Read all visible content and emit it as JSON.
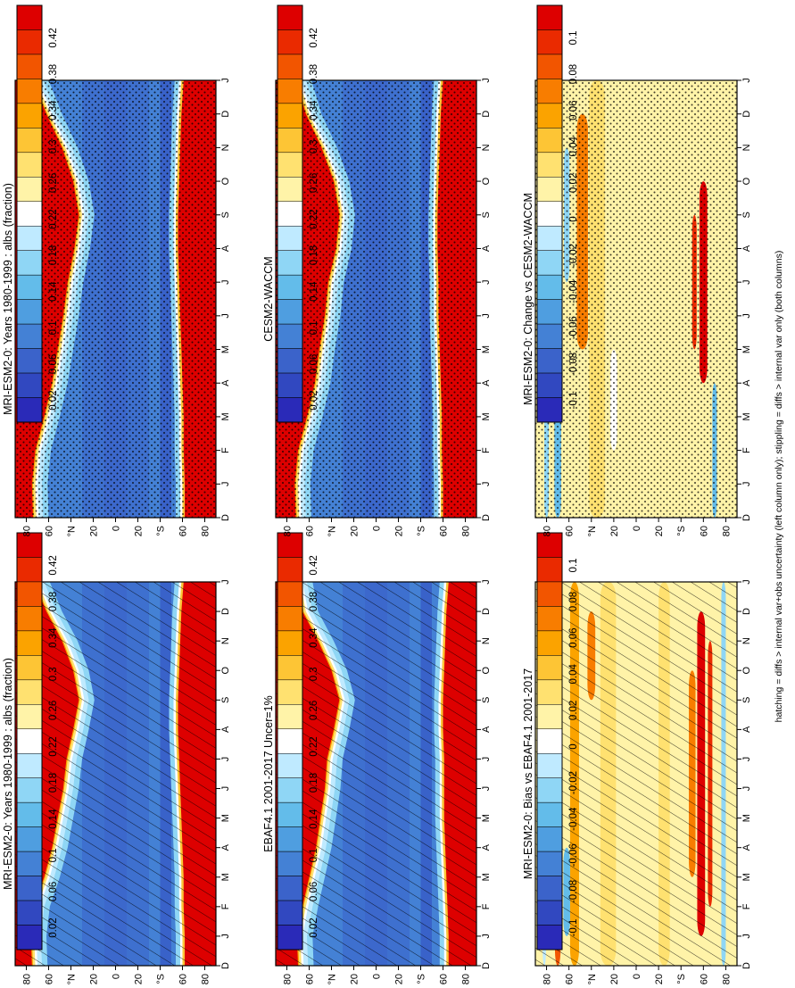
{
  "footer": "hatching = diffs > internal var+obs uncertainty (left column only); stippling = diffs > internal var only (both columns)",
  "colors": {
    "clim_scale": [
      "#dd0000",
      "#ea2a00",
      "#f25500",
      "#f87d00",
      "#fba300",
      "#fdc535",
      "#ffe170",
      "#fff3a8",
      "#ffffff",
      "#bfeaff",
      "#8fd6f5",
      "#63bcea",
      "#4f9ee0",
      "#4481d5",
      "#3b63ca",
      "#3148c0",
      "#2a2ab8"
    ],
    "diff_scale": [
      "#dd0000",
      "#ea2a00",
      "#f25500",
      "#f87d00",
      "#fba300",
      "#fdc535",
      "#ffe170",
      "#fff3a8",
      "#ffffff",
      "#bfeaff",
      "#8fd6f5",
      "#63bcea",
      "#4f9ee0",
      "#4481d5",
      "#3b63ca",
      "#3148c0",
      "#2a2ab8"
    ]
  },
  "chart_data": [
    {
      "id": "model_clim",
      "type": "heatmap",
      "title": "MRI-ESM2-0: Years 1980-1999 : albs (fraction)",
      "x_ticks": [
        "D",
        "J",
        "F",
        "M",
        "A",
        "M",
        "J",
        "J",
        "A",
        "S",
        "O",
        "N",
        "D",
        "J"
      ],
      "y_ticks": [
        "80",
        "60",
        "°N",
        "20",
        "0",
        "20",
        "°S",
        "60",
        "80"
      ],
      "overlay": "hatching",
      "colorbar": [
        "0.42",
        "0.38",
        "0.34",
        "0.3",
        "0.26",
        "0.22",
        "0.18",
        "0.14",
        "0.1",
        "0.06",
        "0.02"
      ],
      "ice_edge_N": [
        75,
        76,
        73,
        64,
        57,
        52,
        47,
        44,
        38,
        33,
        38,
        48,
        62,
        73
      ],
      "ice_edge_S": [
        -62,
        -62,
        -61,
        -61,
        -60,
        -59,
        -58,
        -57,
        -56,
        -56,
        -57,
        -58,
        -59,
        -61
      ]
    },
    {
      "id": "obs_clim",
      "type": "heatmap",
      "title": "EBAF4.1 2001-2017 Uncer=1%",
      "x_ticks": [
        "D",
        "J",
        "F",
        "M",
        "A",
        "M",
        "J",
        "J",
        "A",
        "S",
        "O",
        "N",
        "D",
        "J"
      ],
      "y_ticks": [
        "80",
        "60",
        "°N",
        "20",
        "0",
        "20",
        "°S",
        "60",
        "80"
      ],
      "overlay": "hatching",
      "colorbar": [
        "0.42",
        "0.38",
        "0.34",
        "0.3",
        "0.26",
        "0.22",
        "0.18",
        "0.14",
        "0.1",
        "0.06",
        "0.02"
      ],
      "ice_edge_N": [
        70,
        71,
        66,
        60,
        54,
        50,
        46,
        44,
        38,
        33,
        40,
        52,
        66,
        71
      ],
      "ice_edge_S": [
        -65,
        -65,
        -64,
        -63,
        -62,
        -61,
        -61,
        -61,
        -60,
        -60,
        -61,
        -62,
        -63,
        -65
      ]
    },
    {
      "id": "model_bias",
      "type": "heatmap",
      "title": "MRI-ESM2-0: Bias vs EBAF4.1 2001-2017",
      "x_ticks": [
        "D",
        "J",
        "F",
        "M",
        "A",
        "M",
        "J",
        "J",
        "A",
        "S",
        "O",
        "N",
        "D",
        "J"
      ],
      "y_ticks": [
        "80",
        "60",
        "°N",
        "20",
        "0",
        "20",
        "°S",
        "60",
        "80"
      ],
      "overlay": "hatching",
      "colorbar": [
        "0.1",
        "0.08",
        "0.06",
        "0.04",
        "0.02",
        "0",
        "-0.02",
        "-0.04",
        "-0.06",
        "-0.08",
        "-0.1"
      ]
    },
    {
      "id": "ref_clim",
      "type": "heatmap",
      "title": "MRI-ESM2-0: Years 1980-1999 : albs (fraction)",
      "x_ticks": [
        "D",
        "J",
        "F",
        "M",
        "A",
        "M",
        "J",
        "J",
        "A",
        "S",
        "O",
        "N",
        "D",
        "J"
      ],
      "y_ticks": [
        "80",
        "60",
        "°N",
        "20",
        "0",
        "20",
        "°S",
        "60",
        "80"
      ],
      "overlay": "stippling",
      "colorbar": [
        "0.42",
        "0.38",
        "0.34",
        "0.3",
        "0.26",
        "0.22",
        "0.18",
        "0.14",
        "0.1",
        "0.06",
        "0.02"
      ],
      "ice_edge_N": [
        74,
        75,
        72,
        64,
        57,
        52,
        47,
        43,
        37,
        33,
        38,
        48,
        62,
        74
      ],
      "ice_edge_S": [
        -62,
        -62,
        -61,
        -61,
        -60,
        -59,
        -58,
        -57,
        -56,
        -56,
        -57,
        -58,
        -59,
        -61
      ]
    },
    {
      "id": "cesm_clim",
      "type": "heatmap",
      "title": "CESM2-WACCM",
      "x_ticks": [
        "D",
        "J",
        "F",
        "M",
        "A",
        "M",
        "J",
        "J",
        "A",
        "S",
        "O",
        "N",
        "D",
        "J"
      ],
      "y_ticks": [
        "80",
        "60",
        "°N",
        "20",
        "0",
        "20",
        "°S",
        "60",
        "80"
      ],
      "overlay": "stippling",
      "colorbar": [
        "0.42",
        "0.38",
        "0.34",
        "0.3",
        "0.26",
        "0.22",
        "0.18",
        "0.14",
        "0.1",
        "0.06",
        "0.02"
      ],
      "ice_edge_N": [
        72,
        73,
        70,
        62,
        55,
        51,
        46,
        43,
        36,
        33,
        38,
        49,
        63,
        72
      ],
      "ice_edge_S": [
        -60,
        -60,
        -59,
        -59,
        -58,
        -57,
        -56,
        -56,
        -55,
        -55,
        -56,
        -57,
        -58,
        -60
      ]
    },
    {
      "id": "model_change",
      "type": "heatmap",
      "title": "MRI-ESM2-0: Change vs CESM2-WACCM",
      "x_ticks": [
        "D",
        "J",
        "F",
        "M",
        "A",
        "M",
        "J",
        "J",
        "A",
        "S",
        "O",
        "N",
        "D",
        "J"
      ],
      "y_ticks": [
        "80",
        "60",
        "°N",
        "20",
        "0",
        "20",
        "°S",
        "60",
        "80"
      ],
      "overlay": "stippling",
      "colorbar": [
        "0.1",
        "0.08",
        "0.06",
        "0.04",
        "0.02",
        "0",
        "-0.02",
        "-0.04",
        "-0.06",
        "-0.08",
        "-0.1"
      ]
    }
  ]
}
